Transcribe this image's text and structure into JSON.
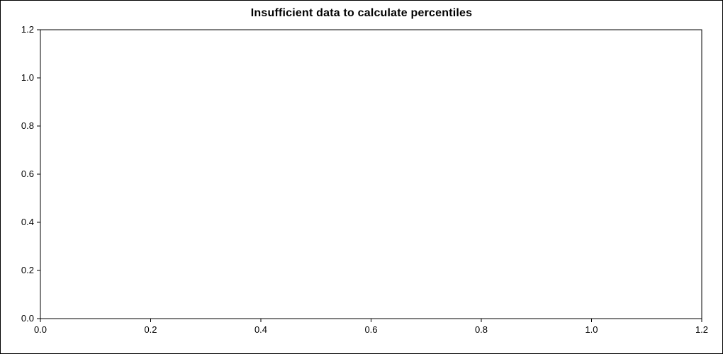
{
  "chart_data": {
    "type": "scatter",
    "title": "Insufficient data to calculate percentiles",
    "subtitle": "",
    "xlabel": "",
    "ylabel": "",
    "xlim": [
      0.0,
      1.2
    ],
    "ylim": [
      0.0,
      1.2
    ],
    "x_ticks": [
      0.0,
      0.2,
      0.4,
      0.6,
      0.8,
      1.0,
      1.2
    ],
    "x_tick_labels": [
      "0.0",
      "0.2",
      "0.4",
      "0.6",
      "0.8",
      "1.0",
      "1.2"
    ],
    "y_ticks": [
      0.0,
      0.2,
      0.4,
      0.6,
      0.8,
      1.0,
      1.2
    ],
    "y_tick_labels": [
      "0.0",
      "0.2",
      "0.4",
      "0.6",
      "0.8",
      "1.0",
      "1.2"
    ],
    "grid": false,
    "legend": null,
    "series": [],
    "points": []
  },
  "colors": {
    "axis": "#000000",
    "background": "#ffffff",
    "text": "#000000"
  },
  "layout_note": ""
}
